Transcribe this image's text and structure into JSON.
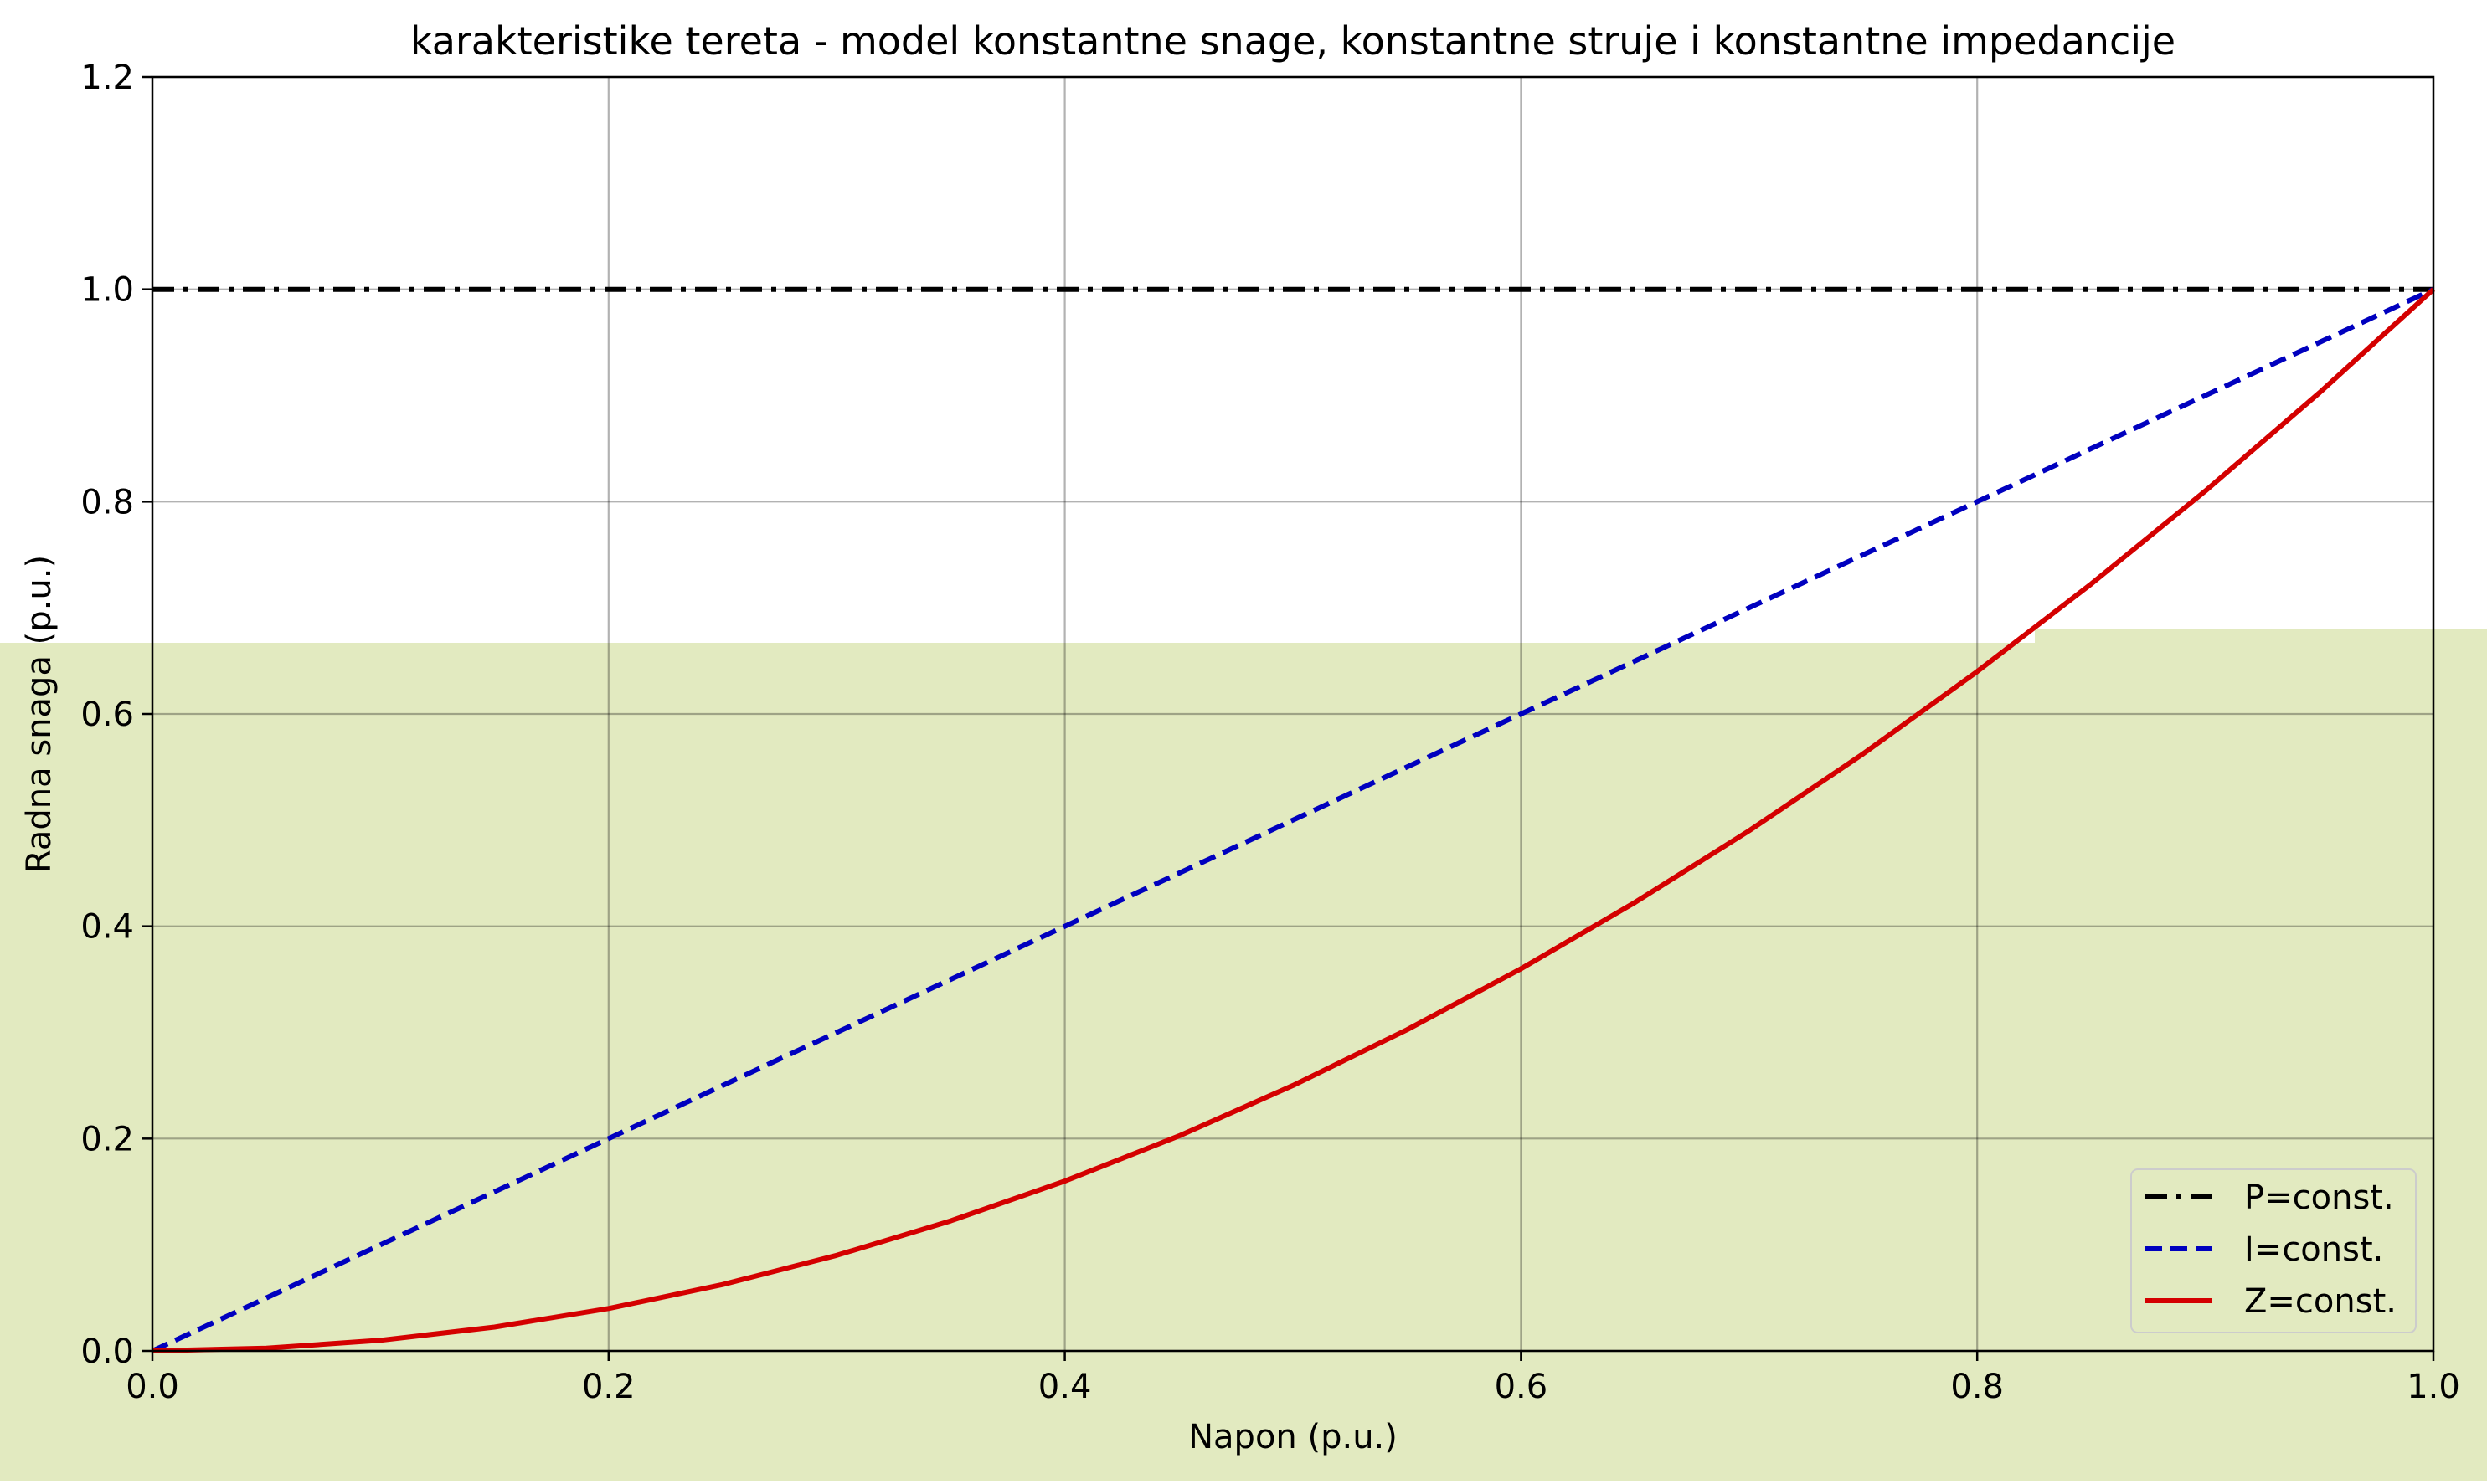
{
  "chart_data": {
    "type": "line",
    "title": "karakteristike tereta - model konstantne snage, konstantne struje i konstantne impedancije",
    "xlabel": "Napon (p.u.)",
    "ylabel": "Radna snaga (p.u.)",
    "xlim": [
      0.0,
      1.0
    ],
    "ylim": [
      0.0,
      1.2
    ],
    "xticks": [
      "0.0",
      "0.2",
      "0.4",
      "0.6",
      "0.8",
      "1.0"
    ],
    "yticks": [
      "0.0",
      "0.2",
      "0.4",
      "0.6",
      "0.8",
      "1.0",
      "1.2"
    ],
    "grid": true,
    "legend_position": "lower-right",
    "x": [
      0.0,
      0.05,
      0.1,
      0.15,
      0.2,
      0.25,
      0.3,
      0.35,
      0.4,
      0.45,
      0.5,
      0.55,
      0.6,
      0.65,
      0.7,
      0.75,
      0.8,
      0.85,
      0.9,
      0.95,
      1.0
    ],
    "series": [
      {
        "name": "P=const.",
        "color": "#000000",
        "line_style": "dash-dot",
        "values": [
          1.0,
          1.0,
          1.0,
          1.0,
          1.0,
          1.0,
          1.0,
          1.0,
          1.0,
          1.0,
          1.0,
          1.0,
          1.0,
          1.0,
          1.0,
          1.0,
          1.0,
          1.0,
          1.0,
          1.0,
          1.0
        ]
      },
      {
        "name": "I=const.",
        "color": "#0000bf",
        "line_style": "dashed",
        "values": [
          0.0,
          0.05,
          0.1,
          0.15,
          0.2,
          0.25,
          0.3,
          0.35,
          0.4,
          0.45,
          0.5,
          0.55,
          0.6,
          0.65,
          0.7,
          0.75,
          0.8,
          0.85,
          0.9,
          0.95,
          1.0
        ]
      },
      {
        "name": "Z=const.",
        "color": "#d40000",
        "line_style": "solid",
        "values": [
          0.0,
          0.0025,
          0.01,
          0.0225,
          0.04,
          0.0625,
          0.09,
          0.1225,
          0.16,
          0.2025,
          0.25,
          0.3025,
          0.36,
          0.4225,
          0.49,
          0.5625,
          0.64,
          0.7225,
          0.81,
          0.9025,
          1.0
        ]
      }
    ]
  }
}
